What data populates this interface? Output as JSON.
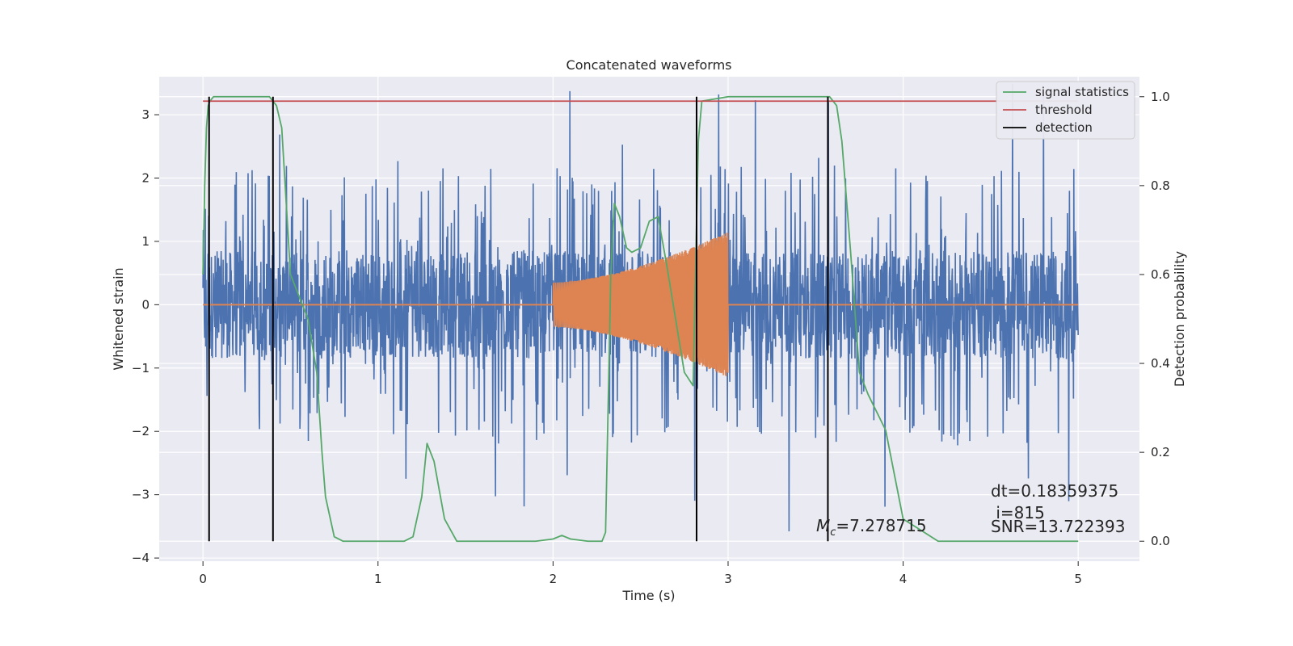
{
  "chart_data": {
    "type": "line",
    "title": "Concatenated waveforms",
    "xlabel": "Time (s)",
    "ylabel_left": "Whitened strain",
    "ylabel_right": "Detection probability",
    "xlim": [
      -0.25,
      5.35
    ],
    "ylim_left": [
      -4.05,
      3.6
    ],
    "ylim_right": [
      -0.045,
      1.045
    ],
    "x_ticks": [
      0,
      1,
      2,
      3,
      4,
      5
    ],
    "y_ticks_left": [
      3,
      2,
      1,
      0,
      -1,
      -2,
      -3,
      -4
    ],
    "y_ticks_right": [
      1.0,
      0.8,
      0.6,
      0.4,
      0.2,
      0.0
    ],
    "x_tick_labels": [
      "0",
      "1",
      "2",
      "3",
      "4",
      "5"
    ],
    "y_tick_labels_left": [
      "3",
      "2",
      "1",
      "0",
      "−1",
      "−2",
      "−3",
      "−4"
    ],
    "y_tick_labels_right": [
      "1.0",
      "0.8",
      "0.6",
      "0.4",
      "0.2",
      "0.0"
    ],
    "grid": true,
    "legend_position": "top-right",
    "legend": [
      {
        "label": "signal statistics",
        "color": "#55a868"
      },
      {
        "label": "threshold",
        "color": "#c44e52"
      },
      {
        "label": "detection",
        "color": "#000000"
      }
    ],
    "series": [
      {
        "kind": "noise",
        "color": "#4c72b0",
        "x_range": [
          0,
          5
        ],
        "amplitude_core": 0.85,
        "spike_range": [
          -3.6,
          3.5
        ]
      },
      {
        "kind": "chirp",
        "color": "#dd8452",
        "x_range": [
          2.0,
          3.0
        ],
        "amplitude_start": 0.35,
        "amplitude_end": 1.15,
        "baseline": 0
      },
      {
        "name": "signal statistics",
        "color": "#55a868",
        "axis": "right",
        "x": [
          0.0,
          0.01,
          0.02,
          0.03,
          0.04,
          0.06,
          0.1,
          0.2,
          0.3,
          0.38,
          0.42,
          0.45,
          0.5,
          0.6,
          0.65,
          0.68,
          0.7,
          0.75,
          0.8,
          1.0,
          1.15,
          1.2,
          1.25,
          1.28,
          1.32,
          1.38,
          1.45,
          1.5,
          1.7,
          1.9,
          2.0,
          2.05,
          2.1,
          2.2,
          2.28,
          2.3,
          2.33,
          2.35,
          2.38,
          2.42,
          2.45,
          2.5,
          2.55,
          2.6,
          2.65,
          2.7,
          2.75,
          2.8,
          2.83,
          2.85,
          3.0,
          3.3,
          3.5,
          3.58,
          3.62,
          3.65,
          3.7,
          3.75,
          3.8,
          3.9,
          3.95,
          4.0,
          4.2,
          4.6,
          5.0
        ],
        "y": [
          0.6,
          0.8,
          0.93,
          0.98,
          0.99,
          1.0,
          1.0,
          1.0,
          1.0,
          1.0,
          0.98,
          0.93,
          0.6,
          0.5,
          0.38,
          0.2,
          0.1,
          0.01,
          0.0,
          0.0,
          0.0,
          0.01,
          0.1,
          0.22,
          0.18,
          0.05,
          0.0,
          0.0,
          0.0,
          0.0,
          0.005,
          0.013,
          0.005,
          0.0,
          0.0,
          0.02,
          0.6,
          0.76,
          0.73,
          0.66,
          0.65,
          0.66,
          0.72,
          0.73,
          0.62,
          0.5,
          0.38,
          0.35,
          0.9,
          0.99,
          1.0,
          1.0,
          1.0,
          1.0,
          0.98,
          0.9,
          0.65,
          0.38,
          0.33,
          0.25,
          0.15,
          0.05,
          0.0,
          0.0,
          0.0
        ]
      },
      {
        "name": "threshold",
        "color": "#c44e52",
        "axis": "right",
        "x": [
          0,
          5
        ],
        "y": [
          0.99,
          0.99
        ]
      },
      {
        "name": "detection",
        "color": "#000000",
        "axis": "right",
        "x": [
          0.035,
          0.4,
          2.82,
          3.57
        ],
        "y_range": [
          0.0,
          1.0
        ]
      }
    ],
    "annotations": {
      "mc_prefix": "M",
      "mc_sub": "c",
      "mc_value": "=7.278715",
      "dt": "dt=0.18359375",
      "i": " i=815",
      "snr": "SNR=13.722393"
    }
  }
}
